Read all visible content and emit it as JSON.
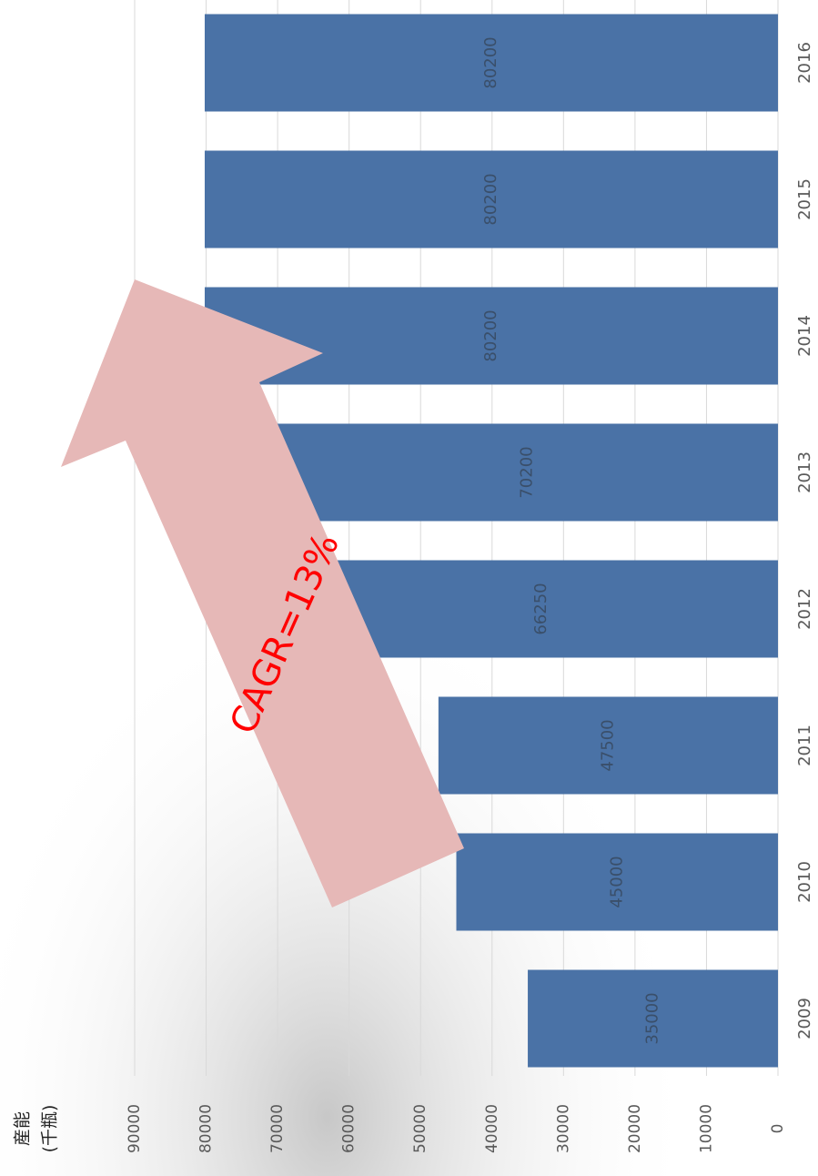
{
  "chart_data": {
    "type": "bar",
    "orientation": "rotated",
    "ylabel": [
      "産能",
      "(千瓶)"
    ],
    "annotation": "CAGR=13%",
    "categories": [
      "2009",
      "2010",
      "2011",
      "2012",
      "2013",
      "2014",
      "2015",
      "2016"
    ],
    "values": [
      35000,
      45000,
      47500,
      66250,
      70200,
      80200,
      80200,
      80200
    ],
    "color": "#4a72a6",
    "ylim": [
      0,
      90000
    ],
    "yticks": [
      0,
      10000,
      20000,
      30000,
      40000,
      50000,
      60000,
      70000,
      80000,
      90000
    ],
    "grid": true
  }
}
